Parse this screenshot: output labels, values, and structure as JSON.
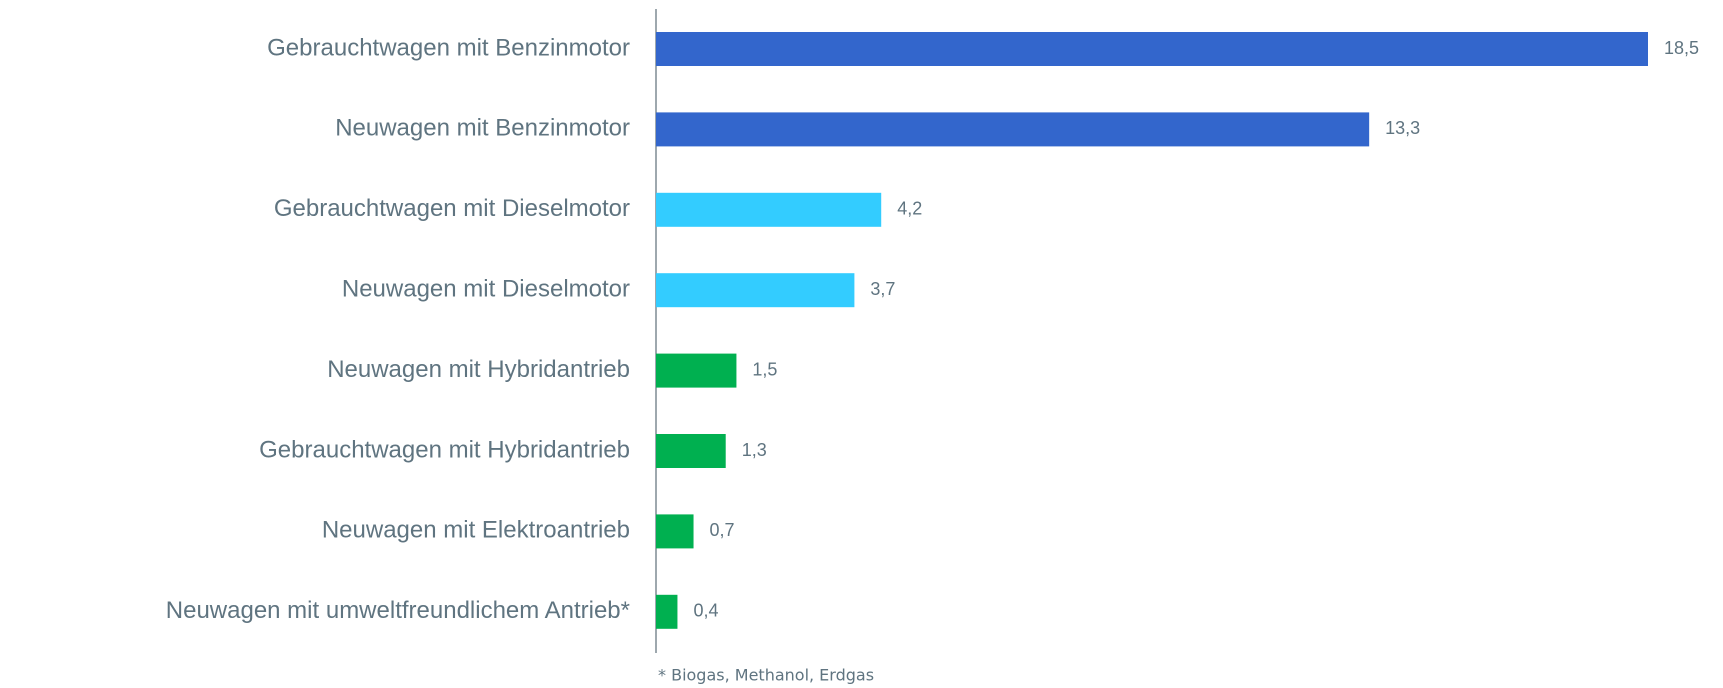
{
  "chart_data": {
    "type": "hbar",
    "categories": [
      "Gebrauchtwagen mit Benzinmotor",
      "Neuwagen mit Benzinmotor",
      "Gebrauchtwagen mit Dieselmotor",
      "Neuwagen mit Dieselmotor",
      "Neuwagen mit Hybridantrieb",
      "Gebrauchtwagen mit Hybridantrieb",
      "Neuwagen mit Elektroantrieb",
      "Neuwagen mit umweltfreundlichem Antrieb*"
    ],
    "values": [
      18.5,
      13.3,
      4.2,
      3.7,
      1.5,
      1.3,
      0.7,
      0.4
    ],
    "value_labels": [
      "18,5",
      "13,3",
      "4,2",
      "3,7",
      "1,5",
      "1,3",
      "0,7",
      "0,4"
    ],
    "colors": [
      "#3366cc",
      "#3366cc",
      "#33ccff",
      "#33ccff",
      "#00b050",
      "#00b050",
      "#00b050",
      "#00b050"
    ],
    "note": "* Biogas, Methanol, Erdgas"
  }
}
